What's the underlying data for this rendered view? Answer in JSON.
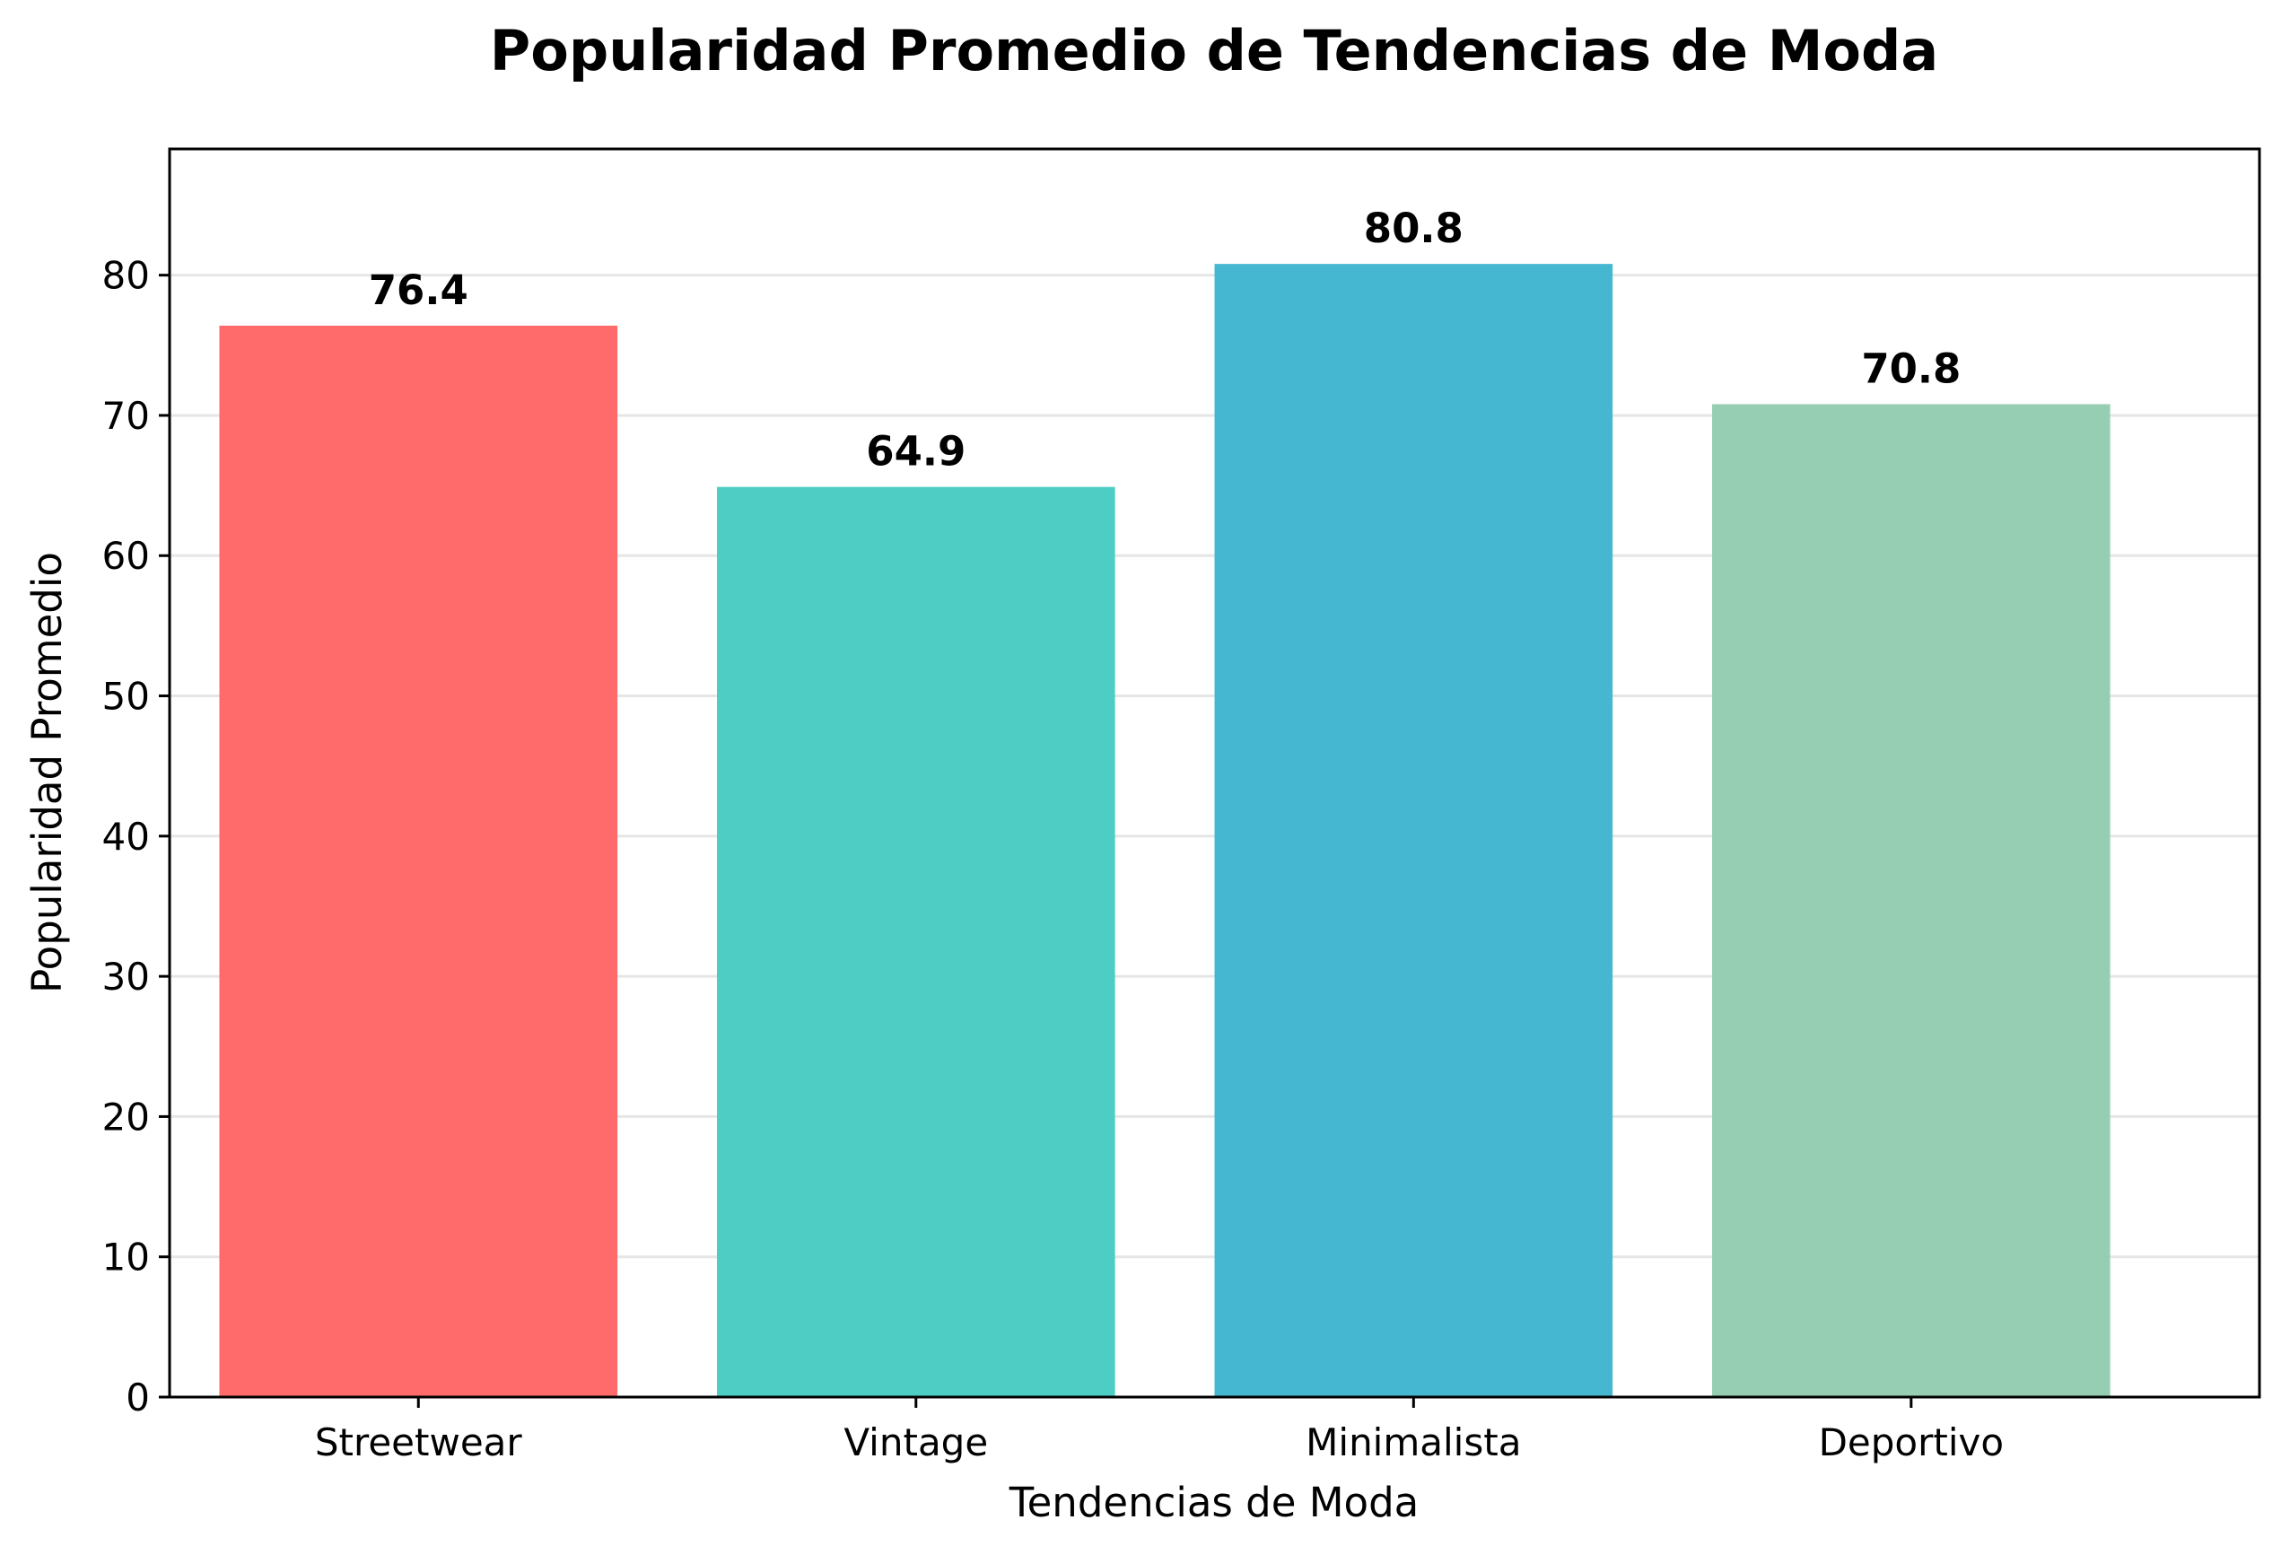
{
  "chart_data": {
    "type": "bar",
    "title": "Popularidad Promedio de Tendencias de Moda",
    "xlabel": "Tendencias de Moda",
    "ylabel": "Popularidad Promedio",
    "categories": [
      "Streetwear",
      "Vintage",
      "Minimalista",
      "Deportivo"
    ],
    "values": [
      76.4,
      64.9,
      80.8,
      70.8
    ],
    "value_labels": [
      "76.4",
      "64.9",
      "80.8",
      "70.8"
    ],
    "colors": [
      "#FF6B6B",
      "#4ECDC4",
      "#45B7D1",
      "#96CEB4"
    ],
    "ylim": [
      0,
      89
    ],
    "yticks": [
      0,
      10,
      20,
      30,
      40,
      50,
      60,
      70,
      80
    ],
    "grid": "y",
    "legend": "none"
  }
}
